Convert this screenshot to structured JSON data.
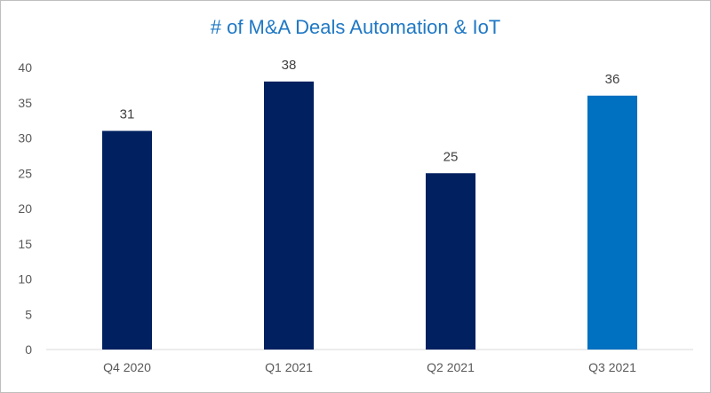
{
  "chart_data": {
    "type": "bar",
    "title": "# of M&A Deals Automation & IoT",
    "categories": [
      "Q4 2020",
      "Q1 2021",
      "Q2 2021",
      "Q3 2021"
    ],
    "values": [
      31,
      38,
      25,
      36
    ],
    "data_labels": [
      "31",
      "38",
      "25",
      "36"
    ],
    "ylim": [
      0,
      40
    ],
    "yticks": [
      "0",
      "5",
      "10",
      "15",
      "20",
      "25",
      "30",
      "35",
      "40"
    ],
    "xlabel": "",
    "ylabel": "",
    "grid": false,
    "legend": "none",
    "colors": [
      "#002060",
      "#002060",
      "#002060",
      "#0070c0"
    ]
  }
}
